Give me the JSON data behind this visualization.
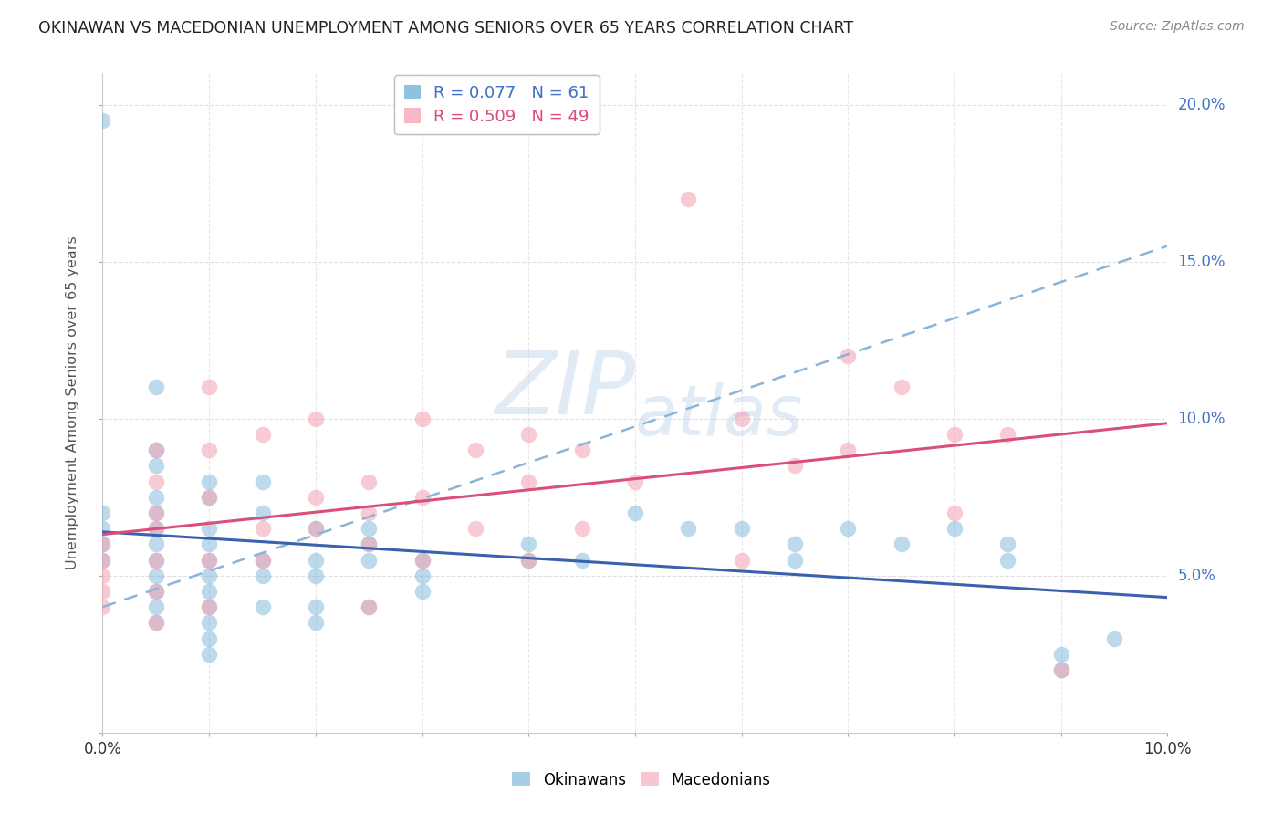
{
  "title": "OKINAWAN VS MACEDONIAN UNEMPLOYMENT AMONG SENIORS OVER 65 YEARS CORRELATION CHART",
  "source": "Source: ZipAtlas.com",
  "ylabel": "Unemployment Among Seniors over 65 years",
  "xlim": [
    0.0,
    0.1
  ],
  "ylim": [
    0.0,
    0.21
  ],
  "xticks": [
    0.0,
    0.01,
    0.02,
    0.03,
    0.04,
    0.05,
    0.06,
    0.07,
    0.08,
    0.09,
    0.1
  ],
  "yticks": [
    0.0,
    0.05,
    0.1,
    0.15,
    0.2
  ],
  "okinawan_color": "#6baed6",
  "macedonian_color": "#f4a0b0",
  "okinawan_R": 0.077,
  "okinawan_N": 61,
  "macedonian_R": 0.509,
  "macedonian_N": 49,
  "okinawan_x": [
    0.0,
    0.0,
    0.0,
    0.0,
    0.0,
    0.005,
    0.005,
    0.005,
    0.005,
    0.005,
    0.005,
    0.005,
    0.005,
    0.005,
    0.005,
    0.005,
    0.005,
    0.01,
    0.01,
    0.01,
    0.01,
    0.01,
    0.01,
    0.01,
    0.01,
    0.01,
    0.01,
    0.01,
    0.015,
    0.015,
    0.015,
    0.015,
    0.015,
    0.02,
    0.02,
    0.02,
    0.02,
    0.02,
    0.025,
    0.025,
    0.025,
    0.025,
    0.03,
    0.03,
    0.03,
    0.04,
    0.04,
    0.045,
    0.05,
    0.055,
    0.06,
    0.065,
    0.065,
    0.07,
    0.075,
    0.08,
    0.085,
    0.085,
    0.09,
    0.09,
    0.095
  ],
  "okinawan_y": [
    0.195,
    0.07,
    0.065,
    0.06,
    0.055,
    0.11,
    0.09,
    0.085,
    0.075,
    0.07,
    0.065,
    0.06,
    0.055,
    0.05,
    0.045,
    0.04,
    0.035,
    0.08,
    0.075,
    0.065,
    0.06,
    0.055,
    0.05,
    0.045,
    0.04,
    0.035,
    0.03,
    0.025,
    0.08,
    0.07,
    0.055,
    0.05,
    0.04,
    0.065,
    0.055,
    0.05,
    0.04,
    0.035,
    0.065,
    0.06,
    0.055,
    0.04,
    0.055,
    0.05,
    0.045,
    0.06,
    0.055,
    0.055,
    0.07,
    0.065,
    0.065,
    0.06,
    0.055,
    0.065,
    0.06,
    0.065,
    0.06,
    0.055,
    0.025,
    0.02,
    0.03
  ],
  "macedonian_x": [
    0.0,
    0.0,
    0.0,
    0.0,
    0.0,
    0.005,
    0.005,
    0.005,
    0.005,
    0.005,
    0.005,
    0.005,
    0.01,
    0.01,
    0.01,
    0.01,
    0.01,
    0.015,
    0.015,
    0.015,
    0.02,
    0.02,
    0.02,
    0.025,
    0.025,
    0.025,
    0.025,
    0.03,
    0.03,
    0.03,
    0.035,
    0.035,
    0.04,
    0.04,
    0.04,
    0.045,
    0.045,
    0.05,
    0.055,
    0.06,
    0.06,
    0.065,
    0.07,
    0.07,
    0.075,
    0.08,
    0.08,
    0.085,
    0.09
  ],
  "macedonian_y": [
    0.06,
    0.055,
    0.05,
    0.045,
    0.04,
    0.09,
    0.08,
    0.07,
    0.065,
    0.055,
    0.045,
    0.035,
    0.11,
    0.09,
    0.075,
    0.055,
    0.04,
    0.095,
    0.065,
    0.055,
    0.1,
    0.075,
    0.065,
    0.08,
    0.07,
    0.06,
    0.04,
    0.1,
    0.075,
    0.055,
    0.09,
    0.065,
    0.095,
    0.08,
    0.055,
    0.09,
    0.065,
    0.08,
    0.17,
    0.1,
    0.055,
    0.085,
    0.12,
    0.09,
    0.11,
    0.095,
    0.07,
    0.095,
    0.02
  ],
  "background_color": "#ffffff",
  "grid_color": "#dddddd",
  "line_blue": "#3a60b0",
  "line_pink": "#d94f7a",
  "line_dashed": "#8ab4d8",
  "watermark_color": "#c5d8ec"
}
